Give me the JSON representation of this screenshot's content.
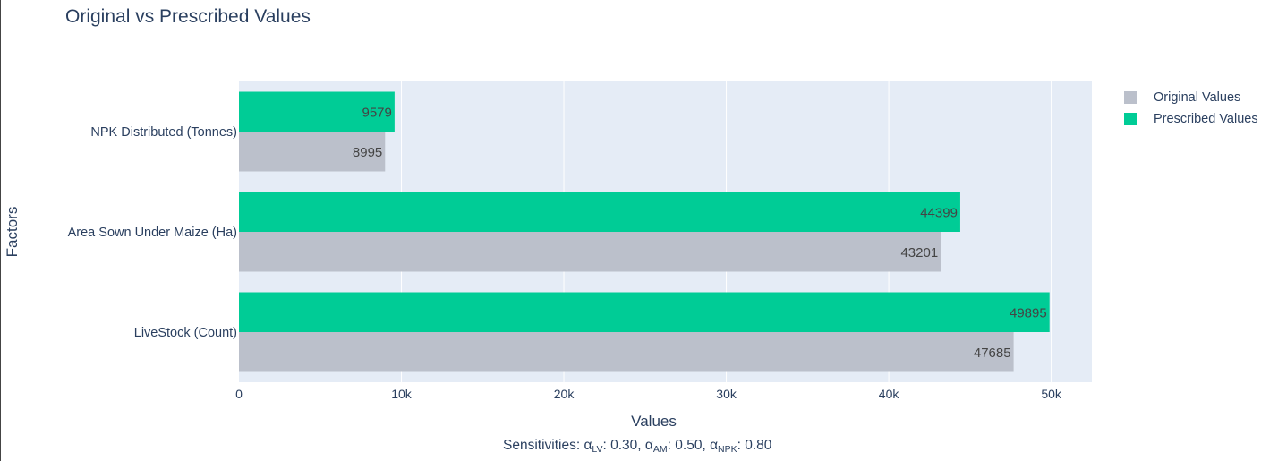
{
  "title": "Original vs Prescribed Values",
  "caption": {
    "prefix": "Sensitivities: ",
    "items": [
      {
        "symbol": "α",
        "sub": "LV",
        "value": "0.30"
      },
      {
        "symbol": "α",
        "sub": "AM",
        "value": "0.50"
      },
      {
        "symbol": "α",
        "sub": "NPK",
        "value": "0.80"
      }
    ]
  },
  "colors": {
    "plot_bg": "#e5ecf6",
    "grid": "#ffffff",
    "original": "#bbc0cb",
    "prescribed": "#00cc96"
  },
  "chart_data": {
    "type": "bar",
    "orientation": "horizontal",
    "title": "Original vs Prescribed Values",
    "xlabel": "Values",
    "ylabel": "Factors",
    "xlim": [
      0,
      52500
    ],
    "xticks": [
      0,
      10000,
      20000,
      30000,
      40000,
      50000
    ],
    "xtick_labels": [
      "0",
      "10k",
      "20k",
      "30k",
      "40k",
      "50k"
    ],
    "categories": [
      "LiveStock (Count)",
      "Area Sown Under Maize (Ha)",
      "NPK Distributed (Tonnes)"
    ],
    "series": [
      {
        "name": "Original Values",
        "values": [
          47685,
          43201,
          8995
        ],
        "color": "#bbc0cb"
      },
      {
        "name": "Prescribed Values",
        "values": [
          49895,
          44399,
          9579
        ],
        "color": "#00cc96"
      }
    ],
    "grid": true,
    "legend": "top-right"
  }
}
